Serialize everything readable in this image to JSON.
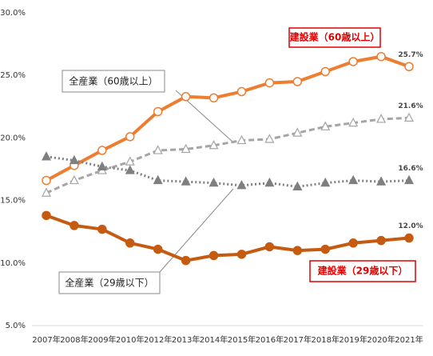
{
  "chart_data": {
    "type": "line",
    "categories": [
      "2007年",
      "2008年",
      "2009年",
      "2010年",
      "2012年",
      "2013年",
      "2014年",
      "2015年",
      "2016年",
      "2017年",
      "2018年",
      "2019年",
      "2020年",
      "2021年"
    ],
    "series": [
      {
        "name": "建設業（60歳以上）",
        "color": "#ED7D31",
        "dash": "solid",
        "marker": "circle",
        "filled": false,
        "values": [
          16.6,
          17.8,
          19.0,
          20.1,
          22.1,
          23.3,
          23.2,
          23.7,
          24.4,
          24.5,
          25.3,
          26.1,
          26.5,
          25.7
        ],
        "value_labels": [
          null,
          null,
          null,
          null,
          null,
          null,
          null,
          null,
          null,
          null,
          null,
          null,
          null,
          "25.7%"
        ]
      },
      {
        "name": "全産業（60歳以上）",
        "color": "#A5A5A5",
        "dash": "dashed",
        "marker": "triangle",
        "filled": false,
        "values": [
          15.6,
          16.6,
          17.4,
          18.1,
          19.0,
          19.1,
          19.4,
          19.8,
          19.9,
          20.4,
          20.9,
          21.2,
          21.5,
          21.6
        ],
        "value_labels": [
          null,
          null,
          null,
          null,
          null,
          null,
          null,
          null,
          null,
          null,
          null,
          null,
          null,
          "21.6%"
        ]
      },
      {
        "name": "全産業（29歳以下）",
        "color": "#7F7F7F",
        "dash": "dotted",
        "marker": "triangle",
        "filled": true,
        "values": [
          18.5,
          18.2,
          17.7,
          17.4,
          16.6,
          16.5,
          16.4,
          16.2,
          16.4,
          16.1,
          16.4,
          16.6,
          16.5,
          16.6
        ],
        "value_labels": [
          null,
          null,
          null,
          null,
          null,
          null,
          null,
          null,
          null,
          null,
          null,
          null,
          null,
          "16.6%"
        ]
      },
      {
        "name": "建設業（29歳以下）",
        "color": "#C55A11",
        "dash": "solid",
        "marker": "circle",
        "filled": true,
        "values": [
          13.8,
          13.0,
          12.7,
          11.6,
          11.1,
          10.2,
          10.6,
          10.7,
          11.3,
          11.0,
          11.1,
          11.6,
          11.8,
          12.0
        ],
        "value_labels": [
          null,
          null,
          null,
          null,
          null,
          null,
          null,
          null,
          null,
          null,
          null,
          null,
          null,
          "12.0%"
        ]
      }
    ],
    "ylim": [
      5,
      30
    ],
    "yticks": [
      {
        "value": 5,
        "label": "5.0%"
      },
      {
        "value": 10,
        "label": "10.0%"
      },
      {
        "value": 15,
        "label": "15.0%"
      },
      {
        "value": 20,
        "label": "20.0%"
      },
      {
        "value": 25,
        "label": "25.0%"
      },
      {
        "value": 30,
        "label": "30.0%"
      }
    ],
    "grid": false
  }
}
